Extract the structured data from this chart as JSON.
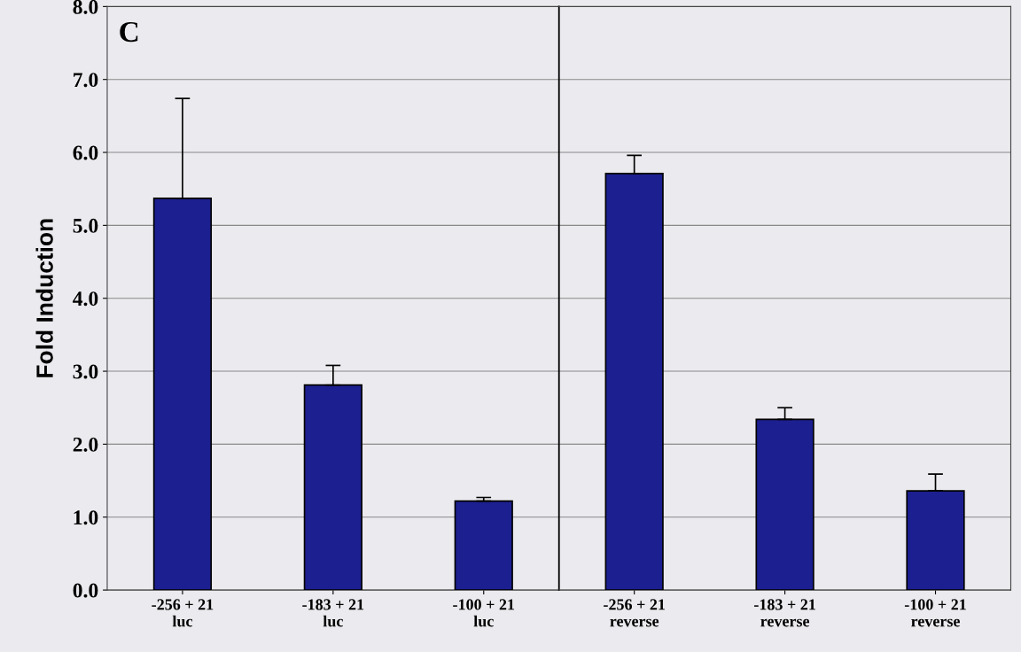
{
  "chart_data": [
    {
      "type": "bar",
      "ylabel": "Fold Induction",
      "annotations": [
        "C"
      ],
      "categories": [
        "-256 + 21\nluc",
        "-183 + 21\nluc",
        "-100 + 21\nluc"
      ],
      "values": [
        5.37,
        2.81,
        1.22
      ],
      "errors": [
        [
          5.37,
          6.74
        ],
        [
          2.81,
          3.08
        ],
        [
          1.22,
          1.27
        ]
      ],
      "color": "#1c1f8f",
      "ylim": [
        0,
        8
      ],
      "yticks": [
        {
          "value": 0,
          "label": "0.0"
        },
        {
          "value": 1,
          "label": "1.0"
        },
        {
          "value": 2,
          "label": "2.0"
        },
        {
          "value": 3,
          "label": "3.0"
        },
        {
          "value": 4,
          "label": "4.0"
        },
        {
          "value": 5,
          "label": "5.0"
        },
        {
          "value": 6,
          "label": "6.0"
        },
        {
          "value": 7,
          "label": "7.0"
        },
        {
          "value": 8,
          "label": "8.0"
        }
      ],
      "grid": "y"
    },
    {
      "type": "bar",
      "categories": [
        "-256 + 21\nreverse",
        "-183 + 21\nreverse",
        "-100 + 21\nreverse"
      ],
      "values": [
        5.71,
        2.34,
        1.36
      ],
      "errors": [
        [
          5.71,
          5.96
        ],
        [
          2.34,
          2.5
        ],
        [
          1.36,
          1.59
        ]
      ],
      "color": "#1c1f8f",
      "ylim": [
        0,
        8
      ],
      "yticks": [
        0,
        1,
        2,
        3,
        4,
        5,
        6,
        7,
        8
      ],
      "tick_labels": "x",
      "grid": "y"
    }
  ]
}
